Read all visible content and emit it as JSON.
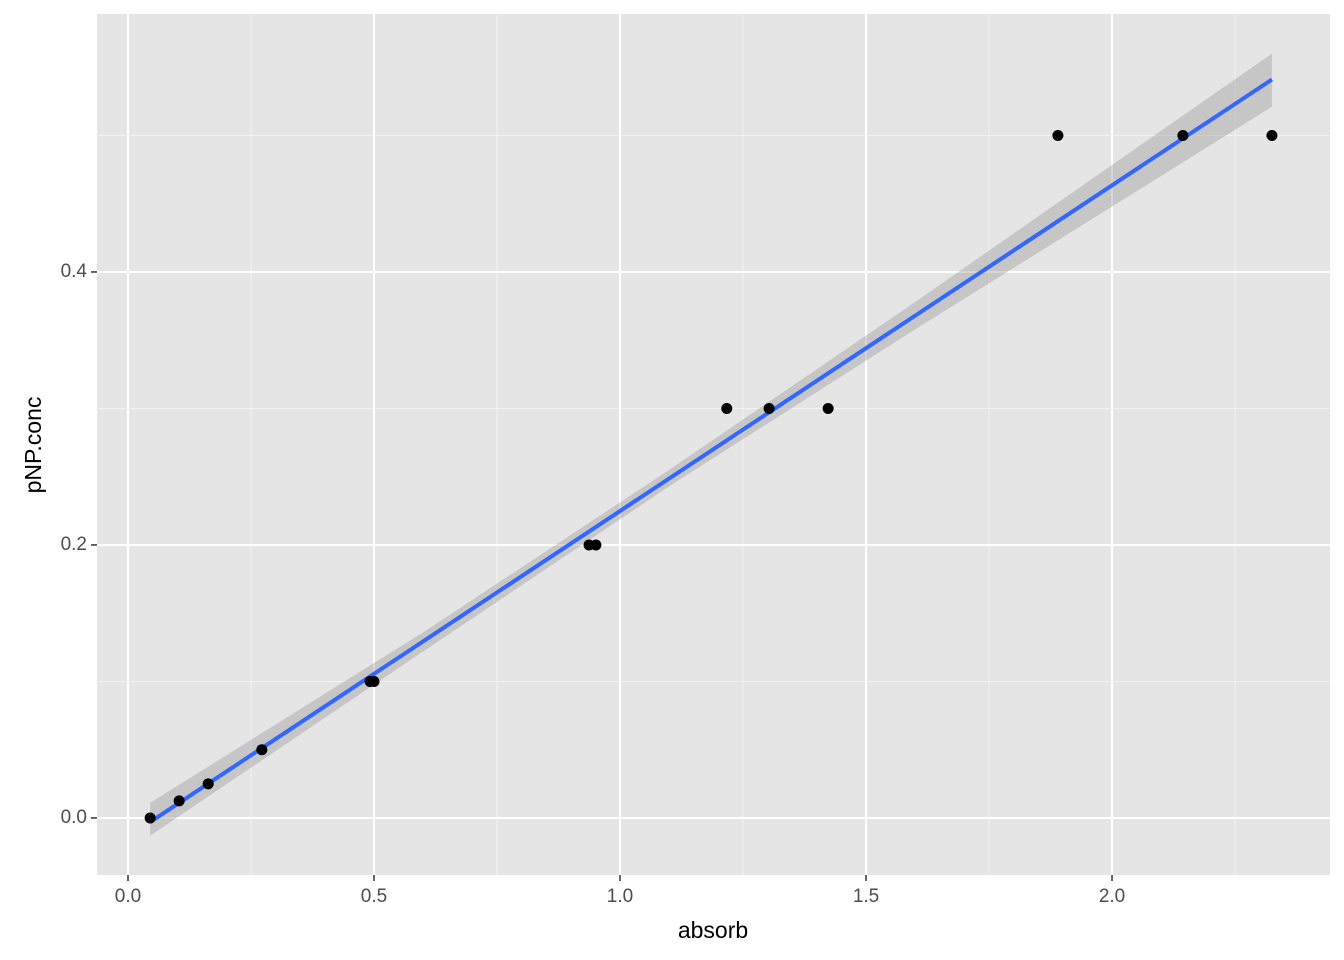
{
  "chart_data": {
    "type": "scatter",
    "xlabel": "absorb",
    "ylabel": "pNP.conc",
    "points": {
      "color": "#000000",
      "x": [
        0.045,
        0.104,
        0.163,
        0.272,
        0.492,
        0.5,
        0.937,
        0.951,
        1.217,
        1.303,
        1.423,
        1.89,
        2.144,
        2.325
      ],
      "y": [
        0,
        0.0125,
        0.025,
        0.05,
        0.1,
        0.1,
        0.2,
        0.2,
        0.3,
        0.3,
        0.3,
        0.5,
        0.5,
        0.5
      ]
    },
    "fit": {
      "color": "#3366ff",
      "x": [
        0.045,
        2.325
      ],
      "y": [
        -0.003,
        0.541
      ]
    },
    "band": {
      "color": "#999999",
      "x": [
        0.045,
        0.6,
        1.1,
        1.6,
        2.325
      ],
      "lower": [
        -0.013,
        0.122,
        0.243,
        0.358,
        0.521
      ],
      "upper": [
        0.011,
        0.136,
        0.255,
        0.378,
        0.56
      ]
    },
    "xlim": [
      -0.063,
      2.443
    ],
    "ylim": [
      -0.0418,
      0.589
    ],
    "xticks": [
      {
        "value": 0,
        "label": "0.0"
      },
      0.5,
      {
        "value": 1,
        "label": "1.0"
      },
      1.5,
      {
        "value": 2,
        "label": "2.0"
      }
    ],
    "yticks": [
      {
        "value": 0,
        "label": "0.0"
      },
      0.2,
      0.4
    ],
    "xminor": [
      0.25,
      0.75,
      1.25,
      1.75,
      2.25
    ],
    "yminor": [
      0.1,
      0.3,
      0.5
    ],
    "grid": true
  }
}
